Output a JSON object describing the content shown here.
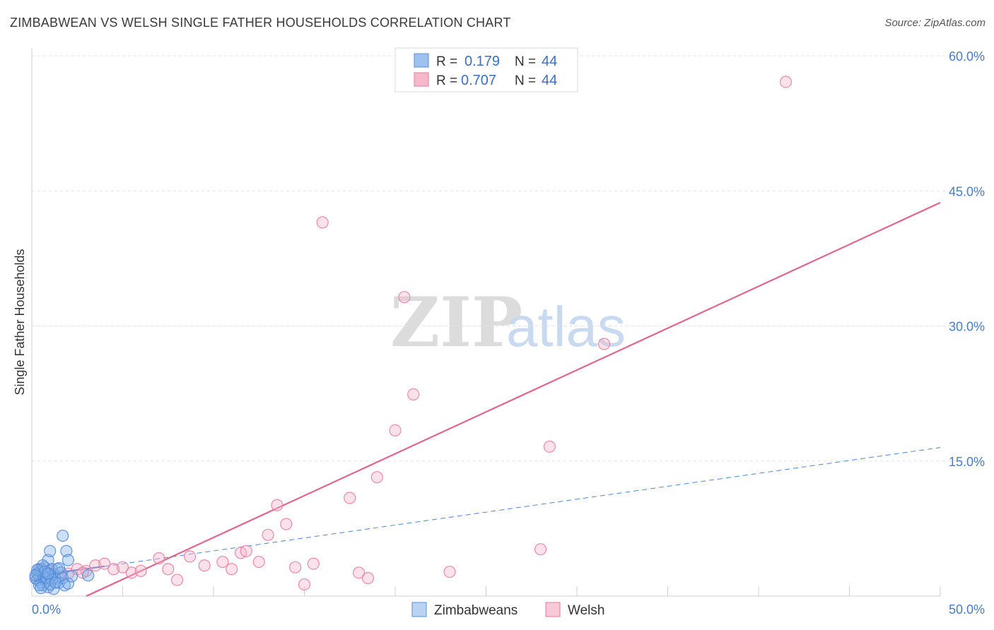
{
  "header": {
    "title": "ZIMBABWEAN VS WELSH SINGLE FATHER HOUSEHOLDS CORRELATION CHART",
    "source": "Source: ZipAtlas.com"
  },
  "watermark": {
    "zip": "ZIP",
    "atlas": "atlas"
  },
  "legend": {
    "rows": [
      {
        "r_label": "R =",
        "r_value": "0.179",
        "n_label": "N =",
        "n_value": "44",
        "color": "#9ec2f0",
        "stroke": "#5b8fd6"
      },
      {
        "r_label": "R =",
        "r_value": "0.707",
        "n_label": "N =",
        "n_value": "44",
        "color": "#f7b8cb",
        "stroke": "#e57a9c"
      }
    ]
  },
  "bottom_legend": [
    {
      "label": "Zimbabweans",
      "color": "#b9d3f3",
      "stroke": "#5b8fd6"
    },
    {
      "label": "Welsh",
      "color": "#f9c9d7",
      "stroke": "#e57a9c"
    }
  ],
  "chart_data": {
    "type": "scatter",
    "title": "ZIMBABWEAN VS WELSH SINGLE FATHER HOUSEHOLDS CORRELATION CHART",
    "xlabel": "",
    "ylabel": "Single Father Households",
    "xlim": [
      0,
      50
    ],
    "ylim": [
      0,
      60
    ],
    "x_tick_labels": [
      {
        "value": 0,
        "label": "0.0%"
      },
      {
        "value": 50,
        "label": "50.0%"
      }
    ],
    "y_tick_labels": [
      {
        "value": 15,
        "label": "15.0%"
      },
      {
        "value": 30,
        "label": "30.0%"
      },
      {
        "value": 45,
        "label": "45.0%"
      },
      {
        "value": 60,
        "label": "60.0%"
      }
    ],
    "grid": true,
    "series": [
      {
        "name": "Zimbabweans",
        "color": "#7fb0ec",
        "stroke": "#4f86d3",
        "points": [
          [
            0.2,
            2.0
          ],
          [
            0.3,
            2.5
          ],
          [
            0.3,
            1.8
          ],
          [
            0.4,
            2.2
          ],
          [
            0.4,
            3.0
          ],
          [
            0.5,
            1.5
          ],
          [
            0.5,
            2.8
          ],
          [
            0.6,
            2.4
          ],
          [
            0.6,
            1.2
          ],
          [
            0.7,
            2.0
          ],
          [
            0.7,
            3.2
          ],
          [
            0.8,
            1.6
          ],
          [
            0.8,
            2.6
          ],
          [
            0.9,
            4.0
          ],
          [
            0.9,
            1.0
          ],
          [
            1.0,
            2.2
          ],
          [
            1.0,
            5.0
          ],
          [
            1.1,
            3.0
          ],
          [
            1.1,
            1.8
          ],
          [
            1.2,
            2.4
          ],
          [
            1.2,
            0.8
          ],
          [
            1.3,
            2.0
          ],
          [
            1.4,
            3.0
          ],
          [
            1.5,
            1.5
          ],
          [
            1.6,
            2.6
          ],
          [
            1.7,
            2.0
          ],
          [
            1.7,
            6.7
          ],
          [
            1.8,
            1.2
          ],
          [
            1.9,
            5.0
          ],
          [
            2.0,
            4.0
          ],
          [
            2.0,
            1.4
          ],
          [
            2.2,
            2.2
          ],
          [
            0.4,
            1.2
          ],
          [
            0.6,
            3.4
          ],
          [
            0.5,
            0.9
          ],
          [
            0.8,
            2.0
          ],
          [
            1.0,
            1.3
          ],
          [
            0.3,
            2.9
          ],
          [
            0.7,
            2.7
          ],
          [
            1.3,
            1.5
          ],
          [
            0.2,
            2.3
          ],
          [
            0.9,
            2.5
          ],
          [
            1.5,
            3.1
          ],
          [
            3.1,
            2.3
          ]
        ],
        "trend": {
          "x": [
            0.2,
            4.0
          ],
          "y": [
            2.3,
            3.3
          ],
          "style": "solid"
        },
        "trend_extended": {
          "x": [
            4.0,
            50.0
          ],
          "y": [
            3.3,
            16.5
          ],
          "style": "dashed"
        }
      },
      {
        "name": "Welsh",
        "color": "#f6b3c7",
        "stroke": "#e57a9c",
        "points": [
          [
            0.3,
            2.5
          ],
          [
            0.5,
            3.0
          ],
          [
            0.8,
            2.0
          ],
          [
            1.0,
            2.8
          ],
          [
            1.5,
            2.2
          ],
          [
            2.0,
            2.5
          ],
          [
            2.5,
            3.0
          ],
          [
            3.0,
            2.8
          ],
          [
            3.5,
            3.4
          ],
          [
            4.0,
            3.6
          ],
          [
            4.5,
            3.0
          ],
          [
            5.0,
            3.2
          ],
          [
            5.5,
            2.6
          ],
          [
            6.0,
            2.8
          ],
          [
            7.0,
            4.2
          ],
          [
            7.5,
            3.0
          ],
          [
            8.0,
            1.8
          ],
          [
            8.7,
            4.4
          ],
          [
            9.5,
            3.4
          ],
          [
            10.5,
            3.8
          ],
          [
            11.0,
            3.0
          ],
          [
            11.5,
            4.8
          ],
          [
            11.8,
            5.0
          ],
          [
            12.5,
            3.8
          ],
          [
            13.0,
            6.8
          ],
          [
            13.5,
            10.1
          ],
          [
            14.0,
            8.0
          ],
          [
            14.5,
            3.2
          ],
          [
            15.0,
            1.3
          ],
          [
            15.5,
            3.6
          ],
          [
            16.0,
            41.5
          ],
          [
            17.5,
            10.9
          ],
          [
            18.0,
            2.6
          ],
          [
            18.5,
            2.0
          ],
          [
            19.0,
            13.2
          ],
          [
            20.0,
            18.4
          ],
          [
            20.5,
            33.2
          ],
          [
            21.0,
            22.4
          ],
          [
            23.0,
            2.7
          ],
          [
            28.0,
            5.2
          ],
          [
            28.5,
            16.6
          ],
          [
            31.5,
            28.0
          ],
          [
            41.5,
            57.1
          ],
          [
            2.8,
            2.6
          ]
        ],
        "trend": {
          "x": [
            3.0,
            50.0
          ],
          "y": [
            0.0,
            43.7
          ],
          "style": "solid"
        }
      }
    ]
  }
}
